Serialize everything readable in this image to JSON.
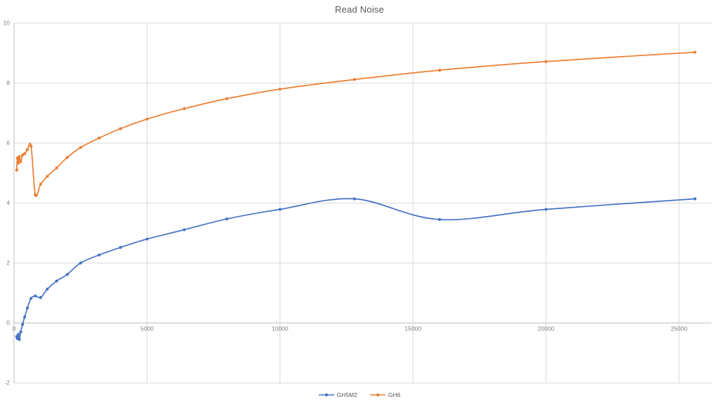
{
  "chart": {
    "title": "Read Noise"
  },
  "chart_data": {
    "type": "line",
    "title": "Read Noise",
    "xlabel": "",
    "ylabel": "",
    "x": [
      100,
      125,
      160,
      200,
      250,
      320,
      400,
      500,
      640,
      800,
      1000,
      1250,
      1600,
      2000,
      2500,
      3200,
      4000,
      5000,
      6400,
      8000,
      10000,
      12800,
      16000,
      20000,
      25600
    ],
    "series": [
      {
        "name": "GH5M2",
        "color": "#4472C4",
        "values": [
          -0.45,
          -0.52,
          -0.38,
          -0.55,
          -0.3,
          -0.05,
          0.2,
          0.5,
          0.82,
          0.9,
          0.85,
          1.13,
          1.4,
          1.62,
          2.0,
          2.27,
          2.52,
          2.8,
          3.11,
          3.47,
          3.79,
          4.14,
          3.45,
          3.79,
          4.14
        ]
      },
      {
        "name": "GH6",
        "color": "#ED7D31",
        "values": [
          5.1,
          5.5,
          5.33,
          5.55,
          5.38,
          5.6,
          5.65,
          5.78,
          5.9,
          4.27,
          4.63,
          4.89,
          5.17,
          5.52,
          5.85,
          6.17,
          6.48,
          6.8,
          7.15,
          7.48,
          7.8,
          8.12,
          8.43,
          8.72,
          9.03
        ]
      }
    ],
    "x_ticks": [
      0,
      5000,
      10000,
      15000,
      20000,
      25000
    ],
    "y_ticks": [
      -2,
      0,
      2,
      4,
      6,
      8,
      10
    ],
    "xlim": [
      0,
      26214
    ],
    "ylim": [
      -2,
      10
    ],
    "grid": true,
    "legend_position": "bottom",
    "smooth_lines": true,
    "markers": true
  },
  "colors": {
    "grid": "#D9D9D9",
    "axis": "#BFBFBF",
    "tick_label": "#808080",
    "title": "#595959",
    "background": "#FFFFFF"
  }
}
